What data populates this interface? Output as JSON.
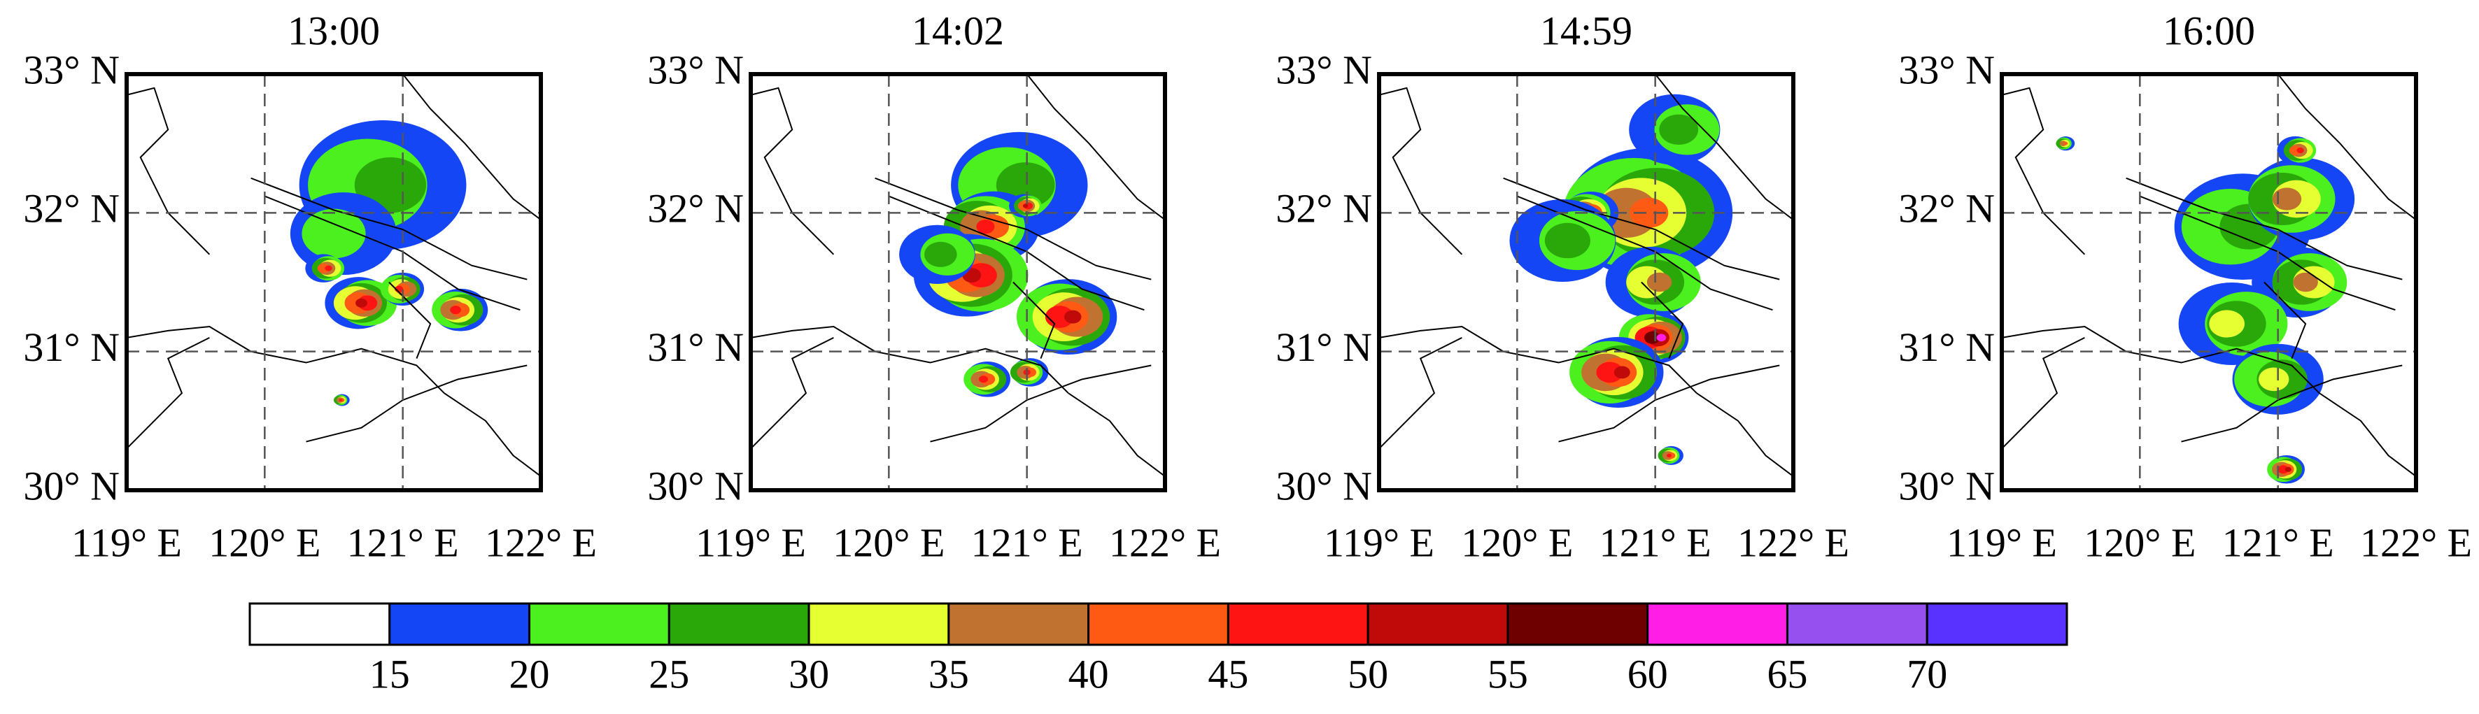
{
  "panels": [
    {
      "title": "13:00"
    },
    {
      "title": "14:02"
    },
    {
      "title": "14:59"
    },
    {
      "title": "16:00"
    }
  ],
  "map": {
    "xlim": [
      119,
      122
    ],
    "ylim": [
      30,
      33
    ],
    "xticks": [
      {
        "value": 119,
        "label": "119° E"
      },
      {
        "value": 120,
        "label": "120° E"
      },
      {
        "value": 121,
        "label": "121° E"
      },
      {
        "value": 122,
        "label": "122° E"
      }
    ],
    "yticks": [
      {
        "value": 30,
        "label": "30° N"
      },
      {
        "value": 31,
        "label": "31° N"
      },
      {
        "value": 32,
        "label": "32° N"
      },
      {
        "value": 33,
        "label": "33° N"
      }
    ],
    "grid": true
  },
  "colorbar": {
    "colors": [
      "#ffffff",
      "#1446f5",
      "#4bf01e",
      "#2aa80a",
      "#e6ff32",
      "#c07330",
      "#ff5a14",
      "#ff1414",
      "#c00a0a",
      "#6e0000",
      "#ff1ee6",
      "#9650f0",
      "#5a32ff"
    ],
    "levels": [
      15,
      20,
      25,
      30,
      35,
      40,
      45,
      50,
      55,
      60,
      65,
      70
    ]
  }
}
